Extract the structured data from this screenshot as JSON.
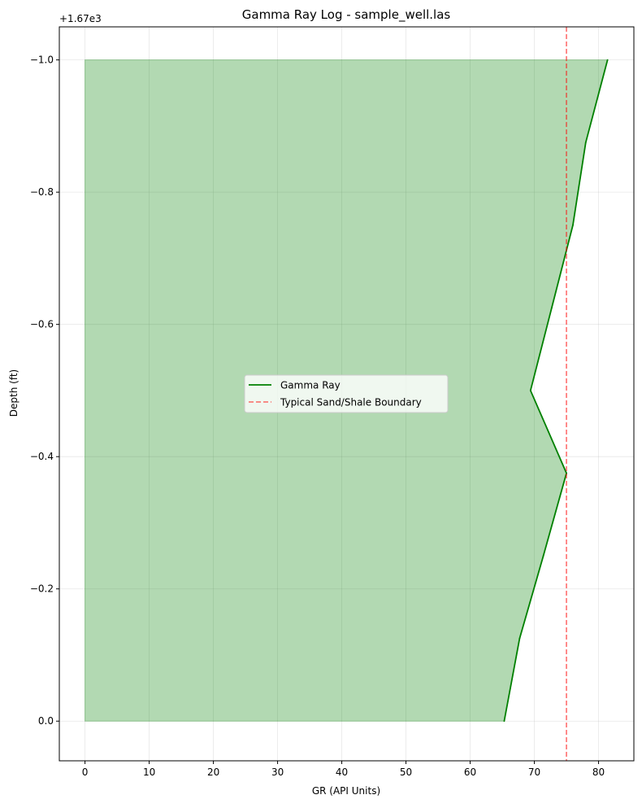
{
  "chart_data": {
    "type": "area",
    "title": "Gamma Ray Log - sample_well.las",
    "xlabel": "GR (API Units)",
    "ylabel": "Depth (ft)",
    "y_offset_text": "+1.67e3",
    "xlim": [
      -4,
      85.5
    ],
    "ylim": [
      0.06,
      -1.05
    ],
    "y_inverted": true,
    "grid": true,
    "legend_placement": "center",
    "x_ticks": [
      0,
      10,
      20,
      30,
      40,
      50,
      60,
      70,
      80
    ],
    "x_tick_labels": [
      "0",
      "10",
      "20",
      "30",
      "40",
      "50",
      "60",
      "70",
      "80"
    ],
    "y_ticks": [
      -1.0,
      -0.8,
      -0.6,
      -0.4,
      -0.2,
      0.0
    ],
    "y_tick_labels": [
      "−1.0",
      "−0.8",
      "−0.6",
      "−0.4",
      "−0.2",
      "0.0"
    ],
    "series": [
      {
        "name": "Gamma Ray",
        "color": "#008000",
        "fill_color": "#008000",
        "fill_alpha": 0.3,
        "fill_from_x": 0,
        "depth": [
          0.0,
          -0.125,
          -0.25,
          -0.375,
          -0.5,
          -0.625,
          -0.75,
          -0.875,
          -1.0
        ],
        "gr": [
          65.3,
          67.7,
          71.4,
          75.0,
          69.4,
          72.7,
          76.0,
          78.0,
          81.4
        ]
      }
    ],
    "reference_lines": [
      {
        "name": "Typical Sand/Shale Boundary",
        "orientation": "vertical",
        "x": 75,
        "color": "#ff0000",
        "alpha": 0.5,
        "dash": true
      }
    ]
  }
}
